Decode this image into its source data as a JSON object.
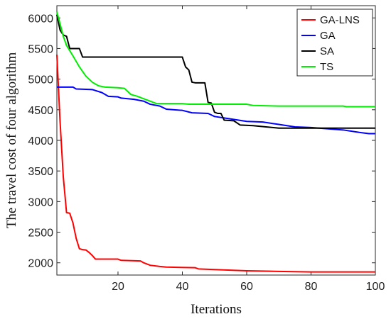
{
  "chart_data": {
    "type": "line",
    "title": "",
    "xlabel": "Iterations",
    "ylabel": "The travel cost of four algorithm",
    "xlim": [
      1,
      100
    ],
    "ylim": [
      1800,
      6200
    ],
    "xticks": [
      20,
      40,
      60,
      80,
      100
    ],
    "yticks": [
      2000,
      2500,
      3000,
      3500,
      4000,
      4500,
      5000,
      5500,
      6000
    ],
    "grid": false,
    "legend_position": "top-right",
    "series": [
      {
        "name": "GA-LNS",
        "color": "#ff0000",
        "points": [
          [
            1,
            5400
          ],
          [
            2,
            4300
          ],
          [
            3,
            3400
          ],
          [
            4,
            2820
          ],
          [
            5,
            2810
          ],
          [
            6,
            2650
          ],
          [
            7,
            2400
          ],
          [
            8,
            2230
          ],
          [
            9,
            2215
          ],
          [
            10,
            2210
          ],
          [
            11,
            2170
          ],
          [
            12,
            2120
          ],
          [
            13,
            2060
          ],
          [
            20,
            2060
          ],
          [
            21,
            2040
          ],
          [
            27,
            2030
          ],
          [
            28,
            2000
          ],
          [
            30,
            1960
          ],
          [
            33,
            1940
          ],
          [
            35,
            1930
          ],
          [
            44,
            1920
          ],
          [
            45,
            1900
          ],
          [
            55,
            1880
          ],
          [
            60,
            1870
          ],
          [
            70,
            1860
          ],
          [
            80,
            1850
          ],
          [
            100,
            1850
          ]
        ]
      },
      {
        "name": "GA",
        "color": "#0000ff",
        "points": [
          [
            1,
            4870
          ],
          [
            6,
            4870
          ],
          [
            7,
            4840
          ],
          [
            12,
            4830
          ],
          [
            15,
            4780
          ],
          [
            17,
            4720
          ],
          [
            20,
            4710
          ],
          [
            21,
            4690
          ],
          [
            25,
            4670
          ],
          [
            28,
            4640
          ],
          [
            30,
            4590
          ],
          [
            33,
            4560
          ],
          [
            35,
            4510
          ],
          [
            40,
            4490
          ],
          [
            43,
            4450
          ],
          [
            48,
            4440
          ],
          [
            50,
            4390
          ],
          [
            55,
            4350
          ],
          [
            60,
            4310
          ],
          [
            65,
            4300
          ],
          [
            70,
            4260
          ],
          [
            75,
            4220
          ],
          [
            80,
            4210
          ],
          [
            85,
            4190
          ],
          [
            90,
            4170
          ],
          [
            95,
            4130
          ],
          [
            98,
            4110
          ],
          [
            100,
            4110
          ]
        ]
      },
      {
        "name": "SA",
        "color": "#000000",
        "points": [
          [
            1,
            6050
          ],
          [
            2,
            5800
          ],
          [
            3,
            5720
          ],
          [
            4,
            5700
          ],
          [
            5,
            5500
          ],
          [
            8,
            5500
          ],
          [
            9,
            5360
          ],
          [
            40,
            5360
          ],
          [
            41,
            5200
          ],
          [
            42,
            5150
          ],
          [
            43,
            4950
          ],
          [
            44,
            4940
          ],
          [
            47,
            4940
          ],
          [
            48,
            4620
          ],
          [
            49,
            4610
          ],
          [
            50,
            4460
          ],
          [
            51,
            4440
          ],
          [
            52,
            4440
          ],
          [
            53,
            4330
          ],
          [
            56,
            4320
          ],
          [
            58,
            4250
          ],
          [
            62,
            4240
          ],
          [
            66,
            4220
          ],
          [
            70,
            4200
          ],
          [
            80,
            4200
          ],
          [
            100,
            4200
          ]
        ]
      },
      {
        "name": "TS",
        "color": "#00ee00",
        "points": [
          [
            1,
            6100
          ],
          [
            2,
            5900
          ],
          [
            3,
            5700
          ],
          [
            4,
            5550
          ],
          [
            6,
            5380
          ],
          [
            8,
            5200
          ],
          [
            10,
            5050
          ],
          [
            12,
            4950
          ],
          [
            14,
            4890
          ],
          [
            16,
            4870
          ],
          [
            20,
            4860
          ],
          [
            22,
            4850
          ],
          [
            24,
            4750
          ],
          [
            26,
            4720
          ],
          [
            28,
            4680
          ],
          [
            30,
            4640
          ],
          [
            32,
            4600
          ],
          [
            40,
            4600
          ],
          [
            42,
            4590
          ],
          [
            60,
            4590
          ],
          [
            62,
            4570
          ],
          [
            70,
            4560
          ],
          [
            90,
            4560
          ],
          [
            91,
            4550
          ],
          [
            100,
            4550
          ]
        ]
      }
    ]
  }
}
